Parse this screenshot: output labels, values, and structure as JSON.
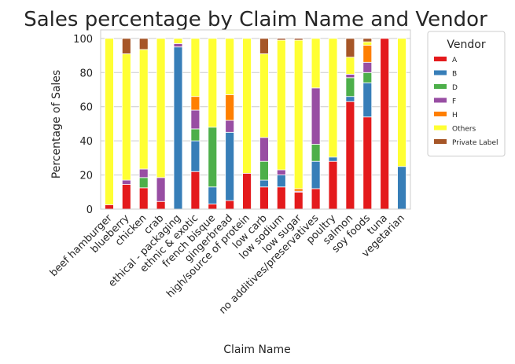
{
  "chart_data": {
    "type": "bar",
    "stacked": true,
    "title": "Sales percentage by Claim Name and Vendor",
    "xlabel": "Claim Name",
    "ylabel": "Percentage of Sales",
    "ylim": [
      0,
      105
    ],
    "yticks": [
      0,
      20,
      40,
      60,
      80,
      100
    ],
    "grid": true,
    "legend": {
      "title": "Vendor",
      "placement": "outside-right"
    },
    "categories": [
      "beef hamburger",
      "blueberry",
      "chicken",
      "crab",
      "ethical - packaging",
      "ethnic & exotic",
      "french bisque",
      "gingerbread",
      "high/source of protein",
      "low carb",
      "low sodium",
      "low sugar",
      "no additives/preservatives",
      "poultry",
      "salmon",
      "soy foods",
      "tuna",
      "vegetarian"
    ],
    "series": [
      {
        "name": "A",
        "color": "#e41a1c",
        "values": [
          2.5,
          14.5,
          12.5,
          4.5,
          0,
          22,
          3,
          5,
          21,
          13,
          13,
          10,
          12,
          28,
          63,
          54,
          100,
          0
        ]
      },
      {
        "name": "B",
        "color": "#377eb8",
        "values": [
          0,
          0,
          0,
          0,
          95,
          18,
          10,
          40,
          0,
          4,
          7,
          0,
          16,
          2.5,
          3,
          20,
          0,
          25
        ]
      },
      {
        "name": "D",
        "color": "#4daf4a",
        "values": [
          0,
          0,
          6,
          0,
          0,
          7,
          35,
          0,
          0,
          11,
          0,
          0,
          10,
          0,
          11,
          6,
          0,
          0
        ]
      },
      {
        "name": "F",
        "color": "#984ea3",
        "values": [
          0,
          2.5,
          5,
          14,
          2,
          11,
          0,
          7,
          0,
          14,
          3,
          0.5,
          33,
          0,
          2,
          6,
          0,
          0
        ]
      },
      {
        "name": "H",
        "color": "#ff7f00",
        "values": [
          0,
          0,
          0,
          0,
          0,
          8,
          0,
          15,
          0,
          0,
          0,
          1.5,
          0,
          0,
          0,
          10,
          0,
          0
        ]
      },
      {
        "name": "Others",
        "color": "#ffff33",
        "values": [
          97.5,
          74,
          70,
          81.5,
          3,
          34,
          52,
          33,
          79,
          49,
          76,
          87,
          29,
          69.5,
          10,
          2,
          0,
          75
        ]
      },
      {
        "name": "Private Label",
        "color": "#a65628",
        "values": [
          0,
          9,
          6.5,
          0,
          0,
          0,
          0,
          0,
          0,
          9,
          1,
          1,
          0,
          0,
          11,
          2,
          0,
          0
        ]
      }
    ]
  }
}
